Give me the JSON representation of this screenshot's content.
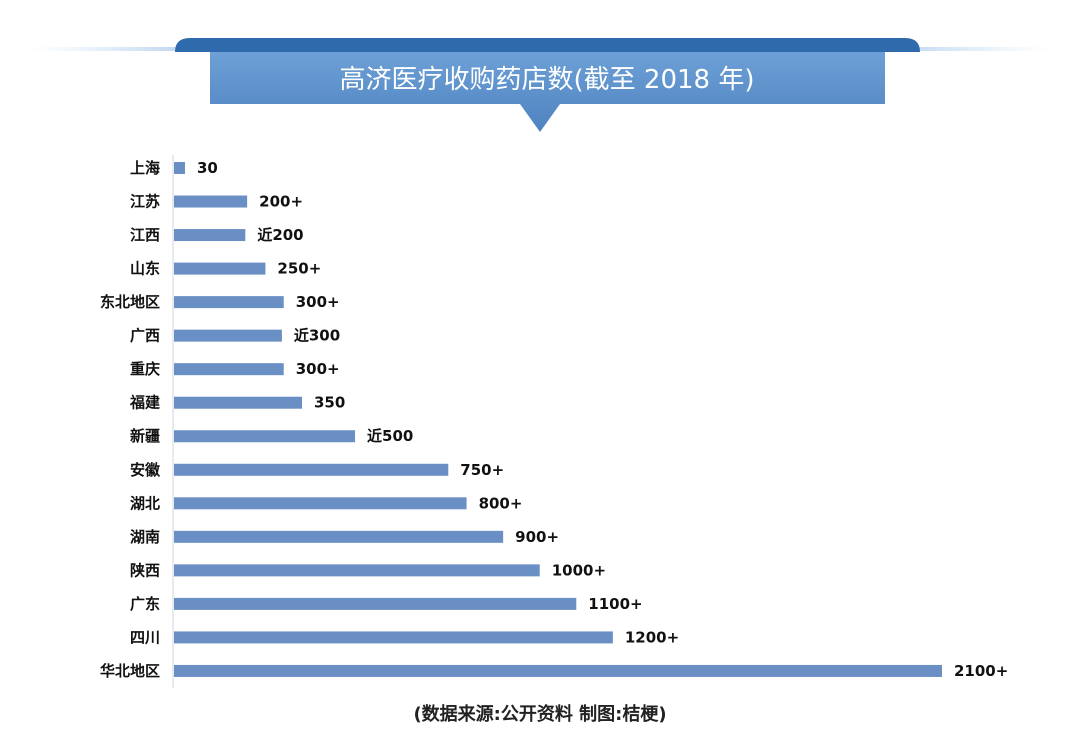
{
  "chart_data": {
    "type": "bar",
    "orientation": "horizontal",
    "title": "高济医疗收购药店数(截至 2018 年)",
    "categories": [
      "上海",
      "江苏",
      "江西",
      "山东",
      "东北地区",
      "广西",
      "重庆",
      "福建",
      "新疆",
      "安徽",
      "湖北",
      "湖南",
      "陕西",
      "广东",
      "四川",
      "华北地区"
    ],
    "values": [
      30,
      200,
      195,
      250,
      300,
      295,
      300,
      350,
      495,
      750,
      800,
      900,
      1000,
      1100,
      1200,
      2100
    ],
    "value_labels": [
      "30",
      "200+",
      "近200",
      "250+",
      "300+",
      "近300",
      "300+",
      "350",
      "近500",
      "750+",
      "800+",
      "900+",
      "1000+",
      "1100+",
      "1200+",
      "2100+"
    ],
    "xlim": [
      0,
      2100
    ],
    "grid": false,
    "legend": "none",
    "bar_color": "#6a8fc4",
    "banner_color": "#5b8fc9",
    "source_note": "(数据来源:公开资料  制图:桔梗)"
  }
}
